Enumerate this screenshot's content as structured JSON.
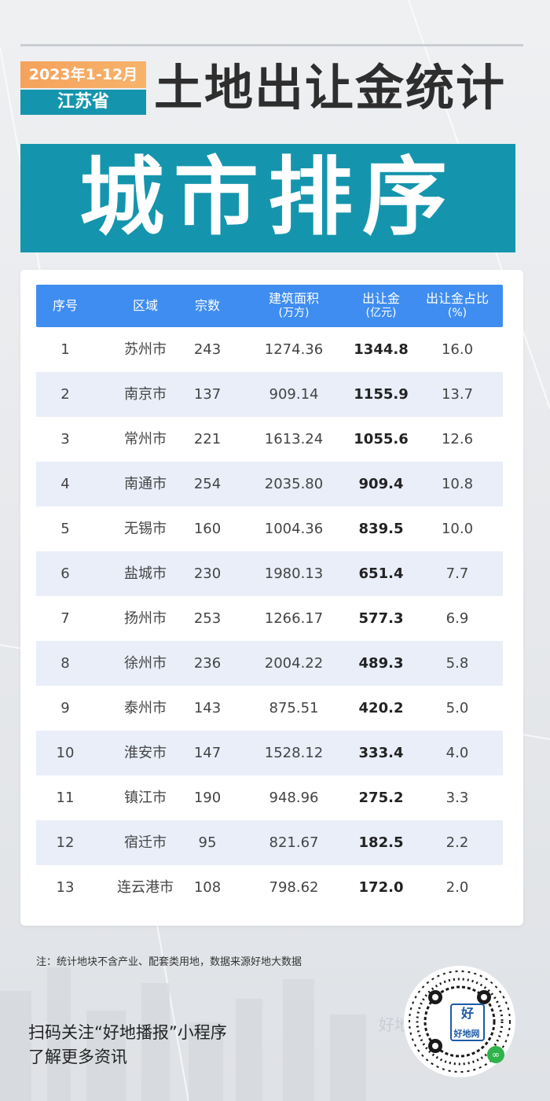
{
  "header": {
    "period": "2023年1-12月",
    "province": "江苏省",
    "title": "土地出让金统计",
    "banner": "城市排序"
  },
  "table": {
    "headers": [
      {
        "main": "序号",
        "sub": ""
      },
      {
        "main": "区域",
        "sub": ""
      },
      {
        "main": "宗数",
        "sub": ""
      },
      {
        "main": "建筑面积",
        "sub": "(万方)"
      },
      {
        "main": "出让金",
        "sub": "(亿元)"
      },
      {
        "main": "出让金占比",
        "sub": "(%)"
      }
    ],
    "rows": [
      {
        "rank": "1",
        "city": "苏州市",
        "count": "243",
        "area": "1274.36",
        "revenue": "1344.8",
        "share": "16.0"
      },
      {
        "rank": "2",
        "city": "南京市",
        "count": "137",
        "area": "909.14",
        "revenue": "1155.9",
        "share": "13.7"
      },
      {
        "rank": "3",
        "city": "常州市",
        "count": "221",
        "area": "1613.24",
        "revenue": "1055.6",
        "share": "12.6"
      },
      {
        "rank": "4",
        "city": "南通市",
        "count": "254",
        "area": "2035.80",
        "revenue": "909.4",
        "share": "10.8"
      },
      {
        "rank": "5",
        "city": "无锡市",
        "count": "160",
        "area": "1004.36",
        "revenue": "839.5",
        "share": "10.0"
      },
      {
        "rank": "6",
        "city": "盐城市",
        "count": "230",
        "area": "1980.13",
        "revenue": "651.4",
        "share": "7.7"
      },
      {
        "rank": "7",
        "city": "扬州市",
        "count": "253",
        "area": "1266.17",
        "revenue": "577.3",
        "share": "6.9"
      },
      {
        "rank": "8",
        "city": "徐州市",
        "count": "236",
        "area": "2004.22",
        "revenue": "489.3",
        "share": "5.8"
      },
      {
        "rank": "9",
        "city": "泰州市",
        "count": "143",
        "area": "875.51",
        "revenue": "420.2",
        "share": "5.0"
      },
      {
        "rank": "10",
        "city": "淮安市",
        "count": "147",
        "area": "1528.12",
        "revenue": "333.4",
        "share": "4.0"
      },
      {
        "rank": "11",
        "city": "镇江市",
        "count": "190",
        "area": "948.96",
        "revenue": "275.2",
        "share": "3.3"
      },
      {
        "rank": "12",
        "city": "宿迁市",
        "count": "95",
        "area": "821.67",
        "revenue": "182.5",
        "share": "2.2"
      },
      {
        "rank": "13",
        "city": "连云港市",
        "count": "108",
        "area": "798.62",
        "revenue": "172.0",
        "share": "2.0"
      }
    ]
  },
  "note": "注：统计地块不含产业、配套类用地，数据来源好地大数据",
  "footer": {
    "line1": "扫码关注“好地播报”小程序",
    "line2": "了解更多资讯"
  },
  "qr": {
    "center_label": "好",
    "sub_label": "好地网"
  },
  "watermark": "好地网",
  "colors": {
    "accent_teal": "#1595ad",
    "header_blue": "#3f8df0",
    "badge_orange": "#f5a25c",
    "alt_row": "#e9eef9"
  }
}
